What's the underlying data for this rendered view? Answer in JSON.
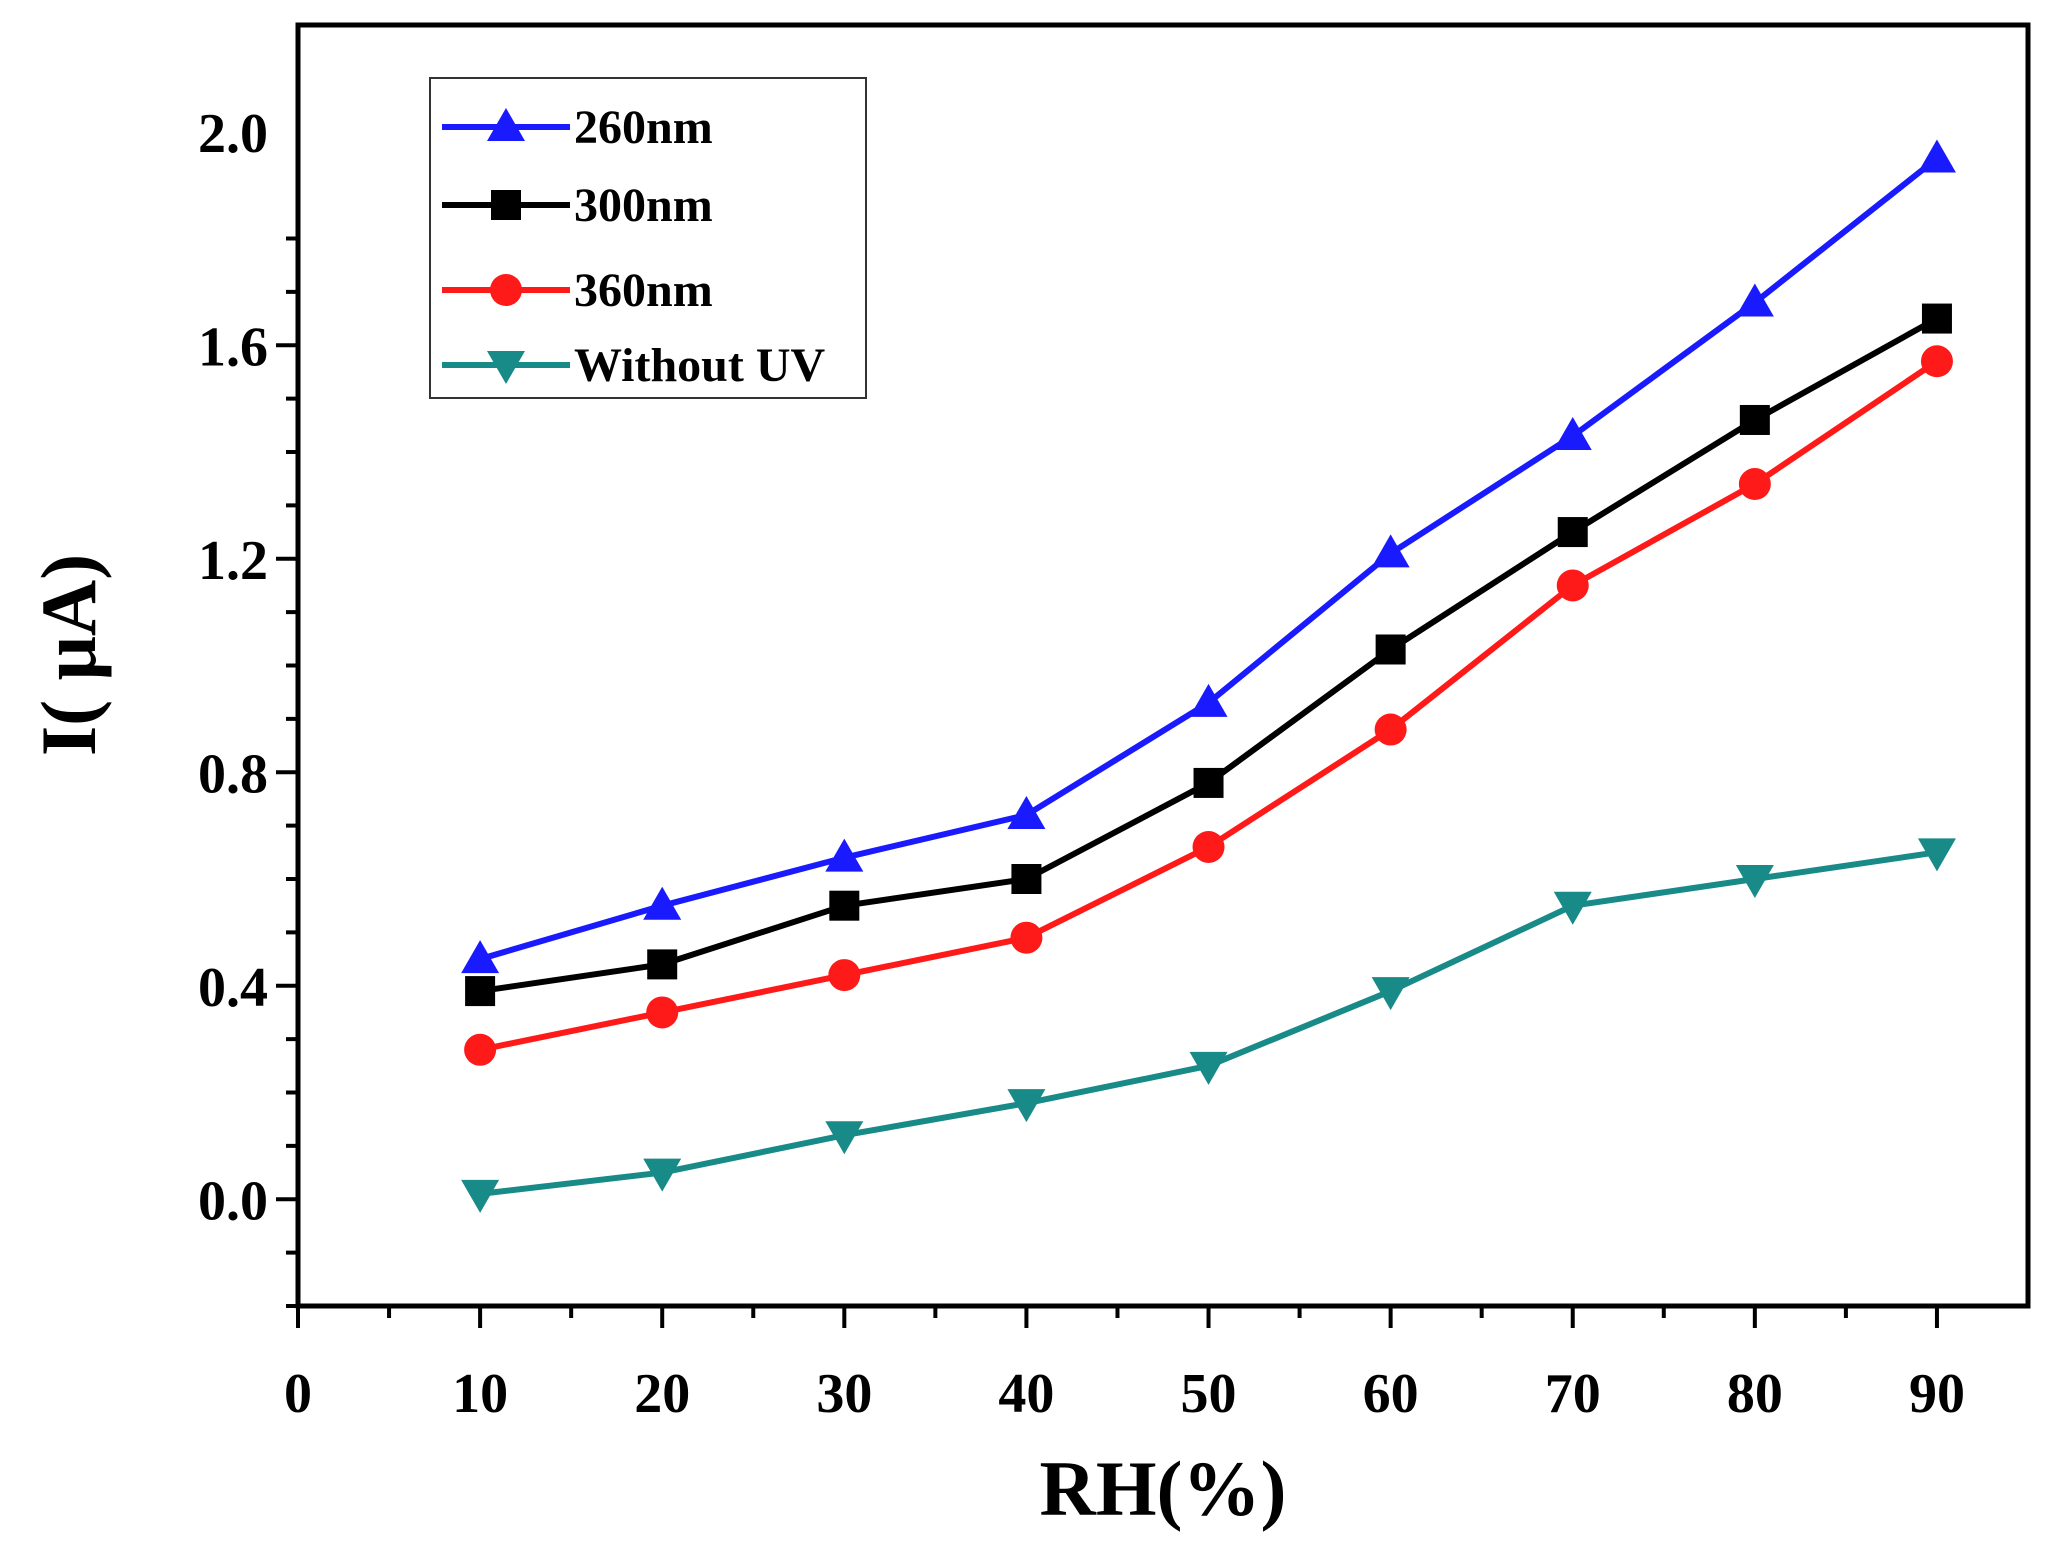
{
  "chart_data": {
    "type": "line",
    "title": "",
    "xlabel": "RH(%)",
    "ylabel": "I( μA)",
    "xlim": [
      0,
      95
    ],
    "ylim": [
      -0.2,
      2.2
    ],
    "x_ticks": [
      0,
      10,
      20,
      30,
      40,
      50,
      60,
      70,
      80,
      90
    ],
    "x_tick_labels": [
      "0",
      "10",
      "20",
      "30",
      "40",
      "50",
      "60",
      "70",
      "80",
      "90"
    ],
    "y_ticks": [
      0.0,
      0.4,
      0.8,
      1.2,
      1.6,
      2.0
    ],
    "y_tick_labels": [
      "0.0",
      "0.4",
      "0.8",
      "1.2",
      "1.6",
      "2.0"
    ],
    "grid": false,
    "legend_position": "top-left",
    "x": [
      10,
      20,
      30,
      40,
      50,
      60,
      70,
      80,
      90
    ],
    "series": [
      {
        "name": "260nm",
        "marker": "triangle-up",
        "color": "#1a1aff",
        "values": [
          0.45,
          0.55,
          0.64,
          0.72,
          0.93,
          1.21,
          1.43,
          1.68,
          1.95
        ]
      },
      {
        "name": "300nm",
        "marker": "square",
        "color": "#000000",
        "values": [
          0.39,
          0.44,
          0.55,
          0.6,
          0.78,
          1.03,
          1.25,
          1.46,
          1.65
        ]
      },
      {
        "name": "360nm",
        "marker": "circle",
        "color": "#ff1a1a",
        "values": [
          0.28,
          0.35,
          0.42,
          0.49,
          0.66,
          0.88,
          1.15,
          1.34,
          1.57
        ]
      },
      {
        "name": "Without UV",
        "marker": "triangle-down",
        "color": "#188a88",
        "values": [
          0.01,
          0.05,
          0.12,
          0.18,
          0.25,
          0.39,
          0.55,
          0.6,
          0.65
        ]
      }
    ]
  }
}
